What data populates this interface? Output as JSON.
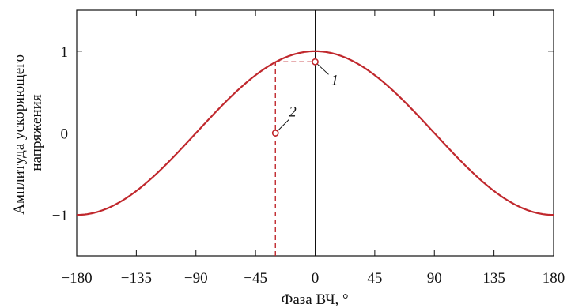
{
  "chart_data": {
    "type": "line",
    "xlabel": "Фаза ВЧ, °",
    "ylabel_lines": [
      "Амплитуда ускоряющего",
      "напряжения"
    ],
    "xlim": [
      -180,
      180
    ],
    "ylim": [
      -1.5,
      1.5
    ],
    "x_ticks": [
      -180,
      -135,
      -90,
      -45,
      0,
      45,
      90,
      135,
      180
    ],
    "x_tick_labels": [
      "−180",
      "−135",
      "−90",
      "−45",
      "0",
      "45",
      "90",
      "135",
      "180"
    ],
    "y_ticks": [
      -1,
      0,
      1
    ],
    "y_tick_labels": [
      "−1",
      "0",
      "1"
    ],
    "grid": false,
    "zero_lines": true,
    "series": [
      {
        "function": "cos",
        "color": "#c0282d",
        "x_start": -180,
        "x_end": 180
      }
    ],
    "points": [
      {
        "label": "1",
        "x": 0,
        "y": 0.87
      },
      {
        "label": "2",
        "x": -30,
        "y": 0
      }
    ],
    "guide_lines": [
      {
        "from": [
          -30,
          0.87
        ],
        "to": [
          0,
          0.87
        ],
        "style": "dashed"
      },
      {
        "from": [
          -30,
          -1.5
        ],
        "to": [
          -30,
          0.87
        ],
        "style": "dashed"
      }
    ],
    "colors": {
      "curve": "#c0282d",
      "axes": "#111111"
    }
  }
}
